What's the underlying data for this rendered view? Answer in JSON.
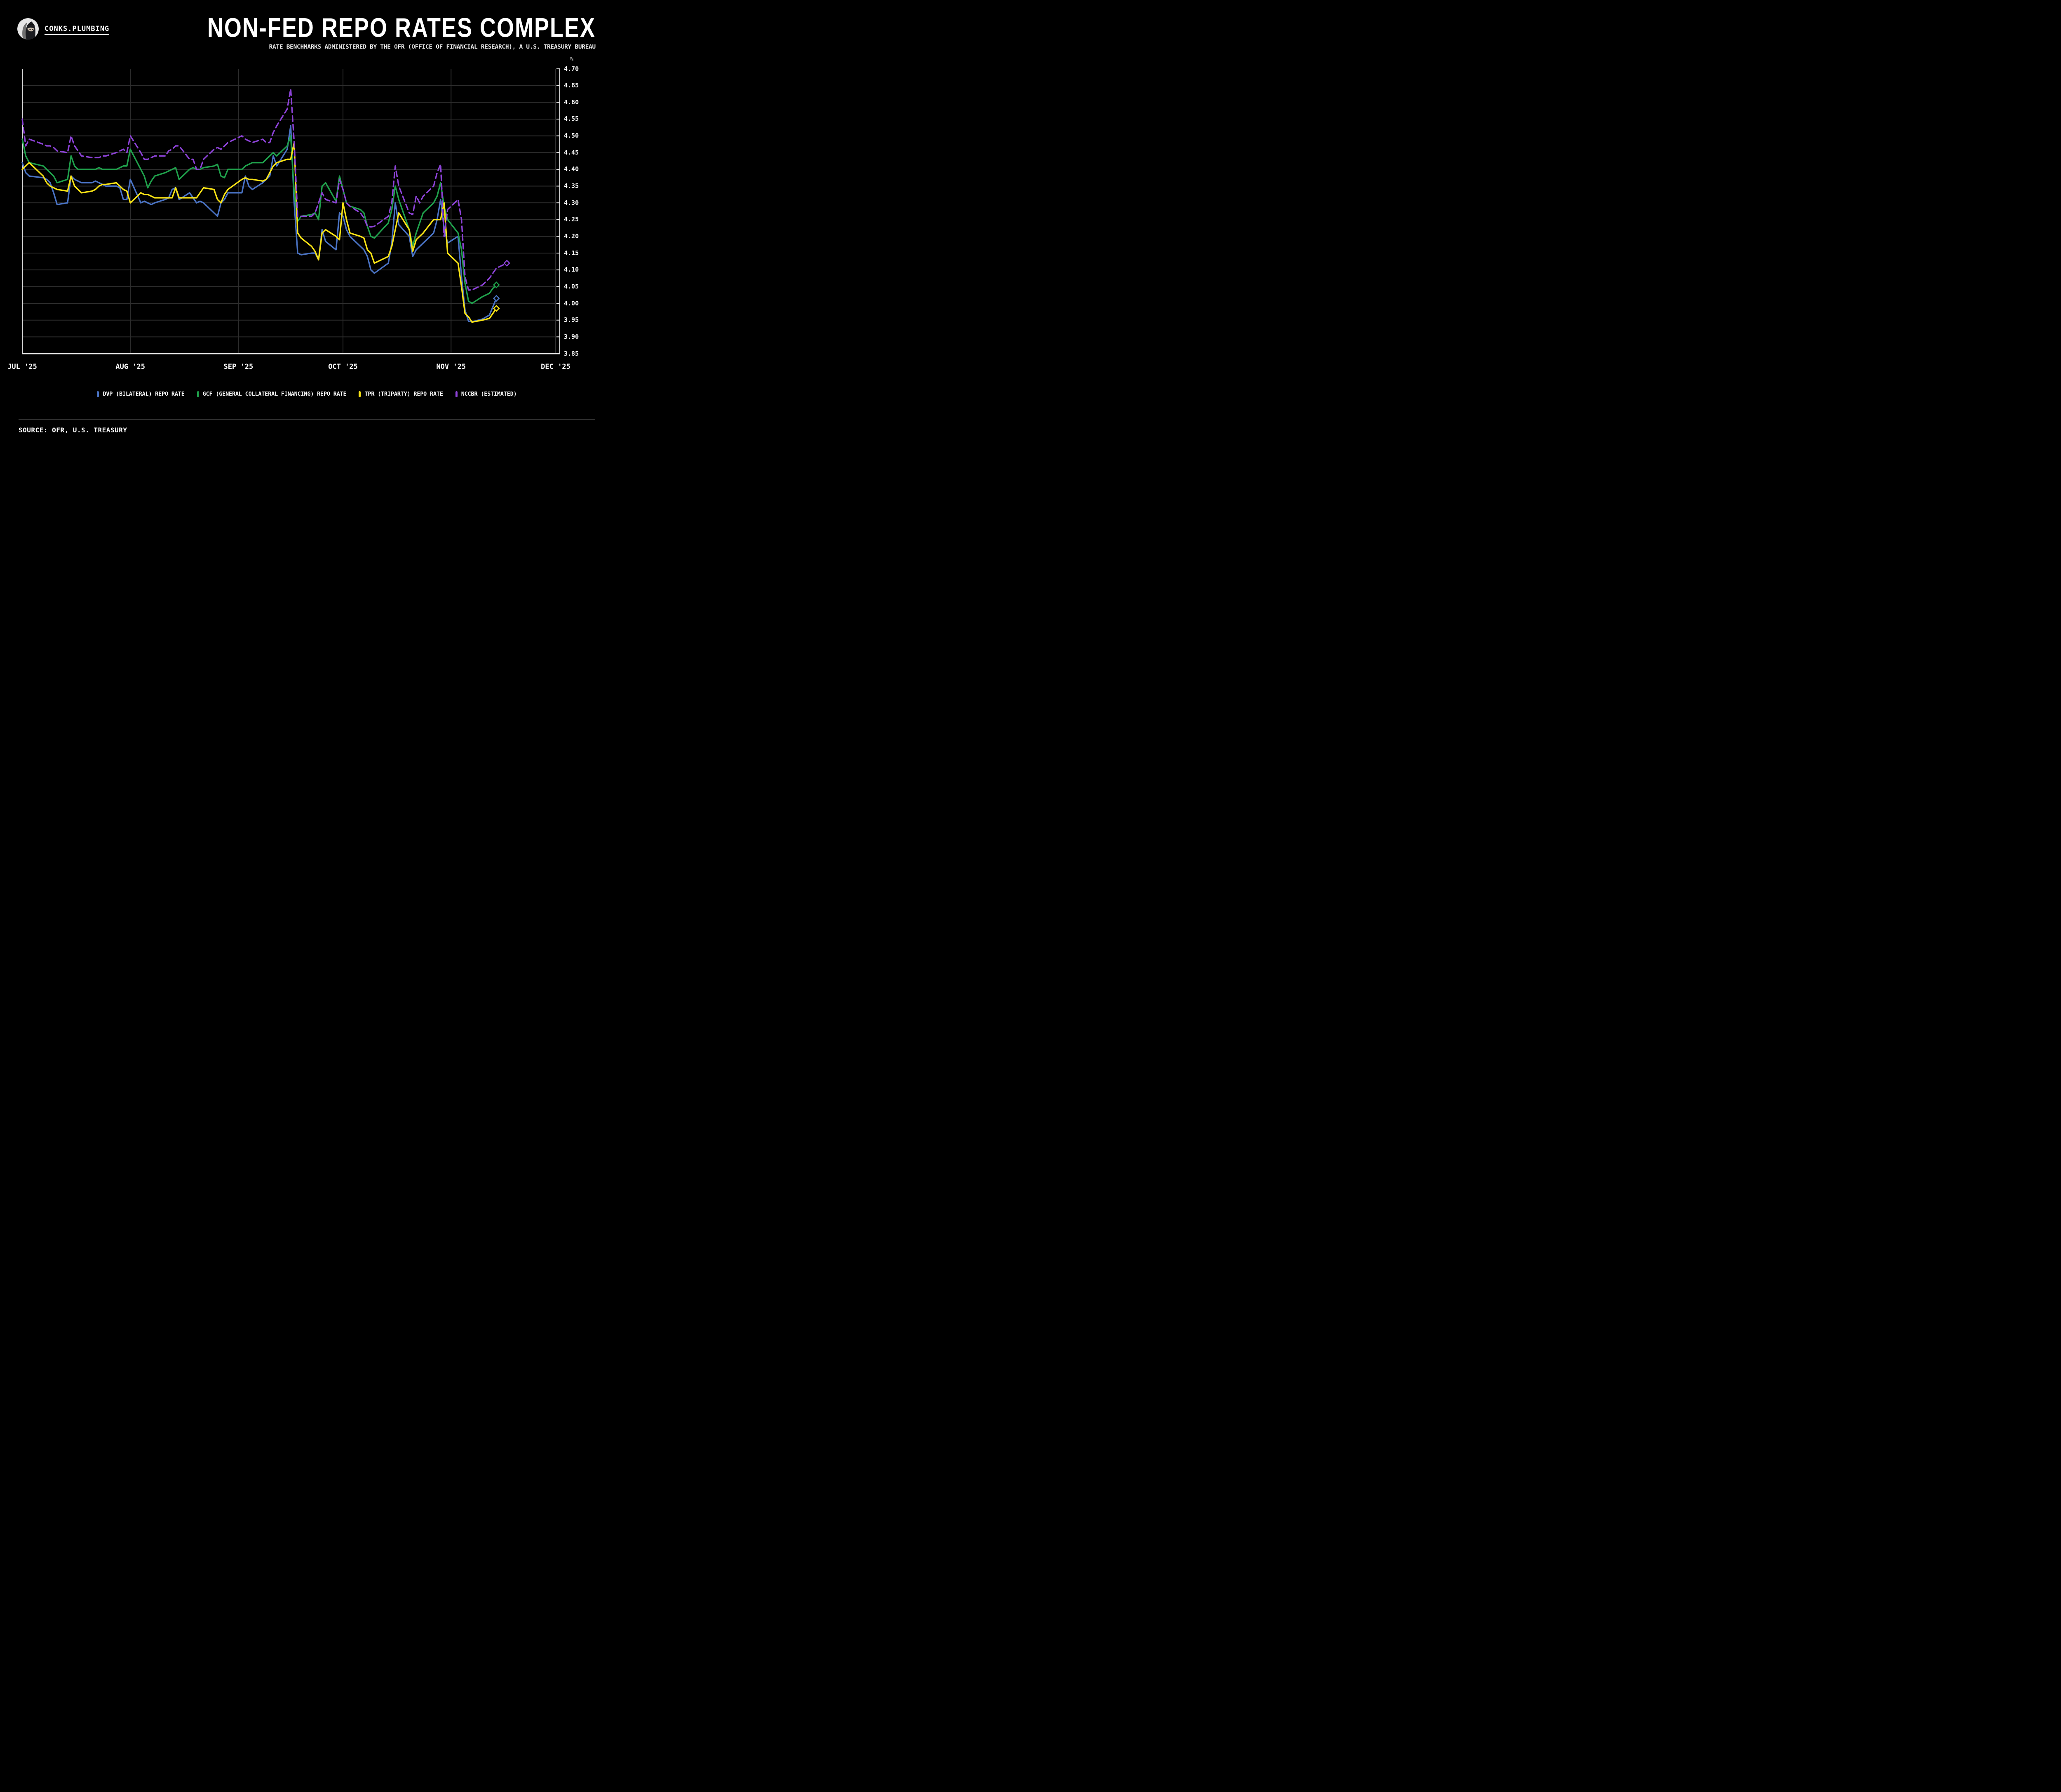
{
  "header": {
    "brand": "CONKS.PLUMBING",
    "title": "NON-FED REPO RATES COMPLEX",
    "subtitle": "RATE BENCHMARKS ADMINISTERED BY THE OFR (OFFICE OF FINANCIAL RESEARCH), A U.S. TREASURY BUREAU"
  },
  "footer": {
    "source": "SOURCE: OFR, U.S. TREASURY"
  },
  "chart_data": {
    "type": "line",
    "unit_label": "%",
    "ylim": [
      3.85,
      4.7
    ],
    "ytick_step": 0.05,
    "grid": true,
    "legend_position": "bottom",
    "x_axis_months": [
      {
        "label": "JUL '25",
        "day": 0
      },
      {
        "label": "AUG '25",
        "day": 31
      },
      {
        "label": "SEP '25",
        "day": 62
      },
      {
        "label": "OCT '25",
        "day": 92
      },
      {
        "label": "NOV '25",
        "day": 123
      },
      {
        "label": "DEC '25",
        "day": 153
      }
    ],
    "x_total_days": 153,
    "dates": [
      "07-01",
      "07-02",
      "07-03",
      "07-07",
      "07-08",
      "07-09",
      "07-10",
      "07-11",
      "07-14",
      "07-15",
      "07-16",
      "07-17",
      "07-18",
      "07-21",
      "07-22",
      "07-23",
      "07-24",
      "07-25",
      "07-28",
      "07-29",
      "07-30",
      "07-31",
      "08-01",
      "08-04",
      "08-05",
      "08-06",
      "08-07",
      "08-08",
      "08-11",
      "08-12",
      "08-13",
      "08-14",
      "08-15",
      "08-18",
      "08-19",
      "08-20",
      "08-21",
      "08-22",
      "08-25",
      "08-26",
      "08-27",
      "08-28",
      "08-29",
      "09-02",
      "09-03",
      "09-04",
      "09-05",
      "09-08",
      "09-09",
      "09-10",
      "09-11",
      "09-12",
      "09-15",
      "09-16",
      "09-17",
      "09-18",
      "09-19",
      "09-22",
      "09-23",
      "09-24",
      "09-25",
      "09-26",
      "09-29",
      "09-30",
      "10-01",
      "10-02",
      "10-03",
      "10-06",
      "10-07",
      "10-08",
      "10-09",
      "10-10",
      "10-14",
      "10-15",
      "10-16",
      "10-17",
      "10-20",
      "10-21",
      "10-22",
      "10-23",
      "10-24",
      "10-27",
      "10-28",
      "10-29",
      "10-30",
      "10-31",
      "11-03",
      "11-04",
      "11-05",
      "11-06",
      "11-07",
      "11-10",
      "11-12",
      "11-13",
      "11-14",
      "11-17"
    ],
    "series": [
      {
        "name": "DVP (BILATERAL) REPO RATE",
        "color": "#4A73C4",
        "style": "solid",
        "end_marker": "diamond",
        "values": [
          4.42,
          4.39,
          4.38,
          4.375,
          4.37,
          4.36,
          4.33,
          4.295,
          4.3,
          4.38,
          4.37,
          4.365,
          4.36,
          4.36,
          4.365,
          4.36,
          4.355,
          4.35,
          4.35,
          4.345,
          4.31,
          4.31,
          4.37,
          4.3,
          4.305,
          4.3,
          4.295,
          4.3,
          4.31,
          4.315,
          4.34,
          4.345,
          4.31,
          4.33,
          4.315,
          4.3,
          4.305,
          4.3,
          4.27,
          4.26,
          4.3,
          4.31,
          4.33,
          4.33,
          4.38,
          4.35,
          4.34,
          4.36,
          4.37,
          4.38,
          4.44,
          4.41,
          4.46,
          4.53,
          4.3,
          4.15,
          4.145,
          4.15,
          4.15,
          4.13,
          4.22,
          4.185,
          4.16,
          4.27,
          4.26,
          4.22,
          4.2,
          4.17,
          4.16,
          4.14,
          4.1,
          4.09,
          4.12,
          4.18,
          4.3,
          4.235,
          4.2,
          4.14,
          4.16,
          4.17,
          4.18,
          4.21,
          4.25,
          4.31,
          4.225,
          4.18,
          4.2,
          4.08,
          3.98,
          3.947,
          3.945,
          3.953,
          3.965,
          3.99,
          4.015,
          null
        ]
      },
      {
        "name": "GCF (GENERAL COLLATERAL FINANCING) REPO RATE",
        "color": "#1FA04B",
        "style": "solid",
        "end_marker": "diamond",
        "values": [
          4.49,
          4.44,
          4.42,
          4.41,
          4.4,
          4.39,
          4.38,
          4.36,
          4.37,
          4.44,
          4.41,
          4.4,
          4.4,
          4.4,
          4.4,
          4.405,
          4.4,
          4.4,
          4.4,
          4.405,
          4.41,
          4.41,
          4.46,
          4.4,
          4.38,
          4.345,
          4.365,
          4.38,
          4.39,
          4.395,
          4.4,
          4.405,
          4.37,
          4.4,
          4.405,
          4.4,
          4.4,
          4.405,
          4.41,
          4.415,
          4.38,
          4.375,
          4.4,
          4.4,
          4.41,
          4.415,
          4.42,
          4.42,
          4.43,
          4.44,
          4.45,
          4.44,
          4.47,
          4.5,
          4.33,
          4.245,
          4.26,
          4.265,
          4.27,
          4.25,
          4.35,
          4.36,
          4.305,
          4.38,
          4.34,
          4.3,
          4.29,
          4.28,
          4.27,
          4.23,
          4.2,
          4.195,
          4.24,
          4.28,
          4.35,
          4.31,
          4.22,
          4.17,
          4.21,
          4.24,
          4.27,
          4.3,
          4.32,
          4.36,
          4.29,
          4.25,
          4.21,
          4.16,
          4.06,
          4.007,
          4.0,
          4.02,
          4.03,
          4.045,
          4.055,
          null
        ]
      },
      {
        "name": "TPR (TRIPARTY) REPO RATE",
        "color": "#F8E315",
        "style": "solid",
        "end_marker": "diamond",
        "values": [
          4.4,
          4.41,
          4.42,
          4.38,
          4.36,
          4.35,
          4.345,
          4.34,
          4.335,
          4.38,
          4.35,
          4.34,
          4.33,
          4.335,
          4.34,
          4.35,
          4.355,
          4.355,
          4.36,
          4.35,
          4.34,
          4.335,
          4.3,
          4.33,
          4.325,
          4.325,
          4.32,
          4.315,
          4.315,
          4.315,
          4.315,
          4.345,
          4.315,
          4.315,
          4.315,
          4.315,
          4.33,
          4.345,
          4.34,
          4.31,
          4.3,
          4.325,
          4.34,
          4.37,
          4.375,
          4.37,
          4.37,
          4.365,
          4.37,
          4.39,
          4.41,
          4.42,
          4.43,
          4.43,
          4.48,
          4.21,
          4.195,
          4.17,
          4.155,
          4.13,
          4.21,
          4.22,
          4.2,
          4.19,
          4.3,
          4.25,
          4.21,
          4.2,
          4.195,
          4.16,
          4.15,
          4.12,
          4.14,
          4.17,
          4.22,
          4.27,
          4.22,
          4.155,
          4.19,
          4.2,
          4.21,
          4.25,
          4.25,
          4.25,
          4.3,
          4.15,
          4.12,
          4.05,
          3.97,
          3.96,
          3.944,
          3.95,
          3.955,
          3.97,
          3.985,
          null
        ]
      },
      {
        "name": "NCCBR (ESTIMATED)",
        "color": "#8C42D6",
        "style": "dashed",
        "end_marker": "diamond",
        "values": [
          4.55,
          4.47,
          4.49,
          4.475,
          4.47,
          4.47,
          4.465,
          4.455,
          4.45,
          4.5,
          4.47,
          4.455,
          4.44,
          4.435,
          4.435,
          4.435,
          4.44,
          4.44,
          4.45,
          4.455,
          4.46,
          4.45,
          4.5,
          4.45,
          4.43,
          4.43,
          4.435,
          4.44,
          4.44,
          4.455,
          4.46,
          4.47,
          4.47,
          4.43,
          4.43,
          4.4,
          4.4,
          4.43,
          4.46,
          4.465,
          4.46,
          4.47,
          4.48,
          4.5,
          4.49,
          4.485,
          4.48,
          4.49,
          4.48,
          4.48,
          4.51,
          4.53,
          4.58,
          4.64,
          4.48,
          4.26,
          4.26,
          4.26,
          4.27,
          4.3,
          4.33,
          4.31,
          4.3,
          4.37,
          4.34,
          4.3,
          4.29,
          4.27,
          4.255,
          4.23,
          4.228,
          4.23,
          4.26,
          4.3,
          4.41,
          4.35,
          4.27,
          4.265,
          4.32,
          4.3,
          4.32,
          4.35,
          4.39,
          4.415,
          4.2,
          4.28,
          4.31,
          4.25,
          4.08,
          4.04,
          4.04,
          4.055,
          4.075,
          4.09,
          4.105,
          4.12
        ]
      }
    ],
    "colors": {
      "background": "#000000",
      "gridline": "#2E2E2E",
      "axis": "#E6E6E6",
      "text": "#FFFFFF",
      "unit_text": "#999999"
    }
  }
}
